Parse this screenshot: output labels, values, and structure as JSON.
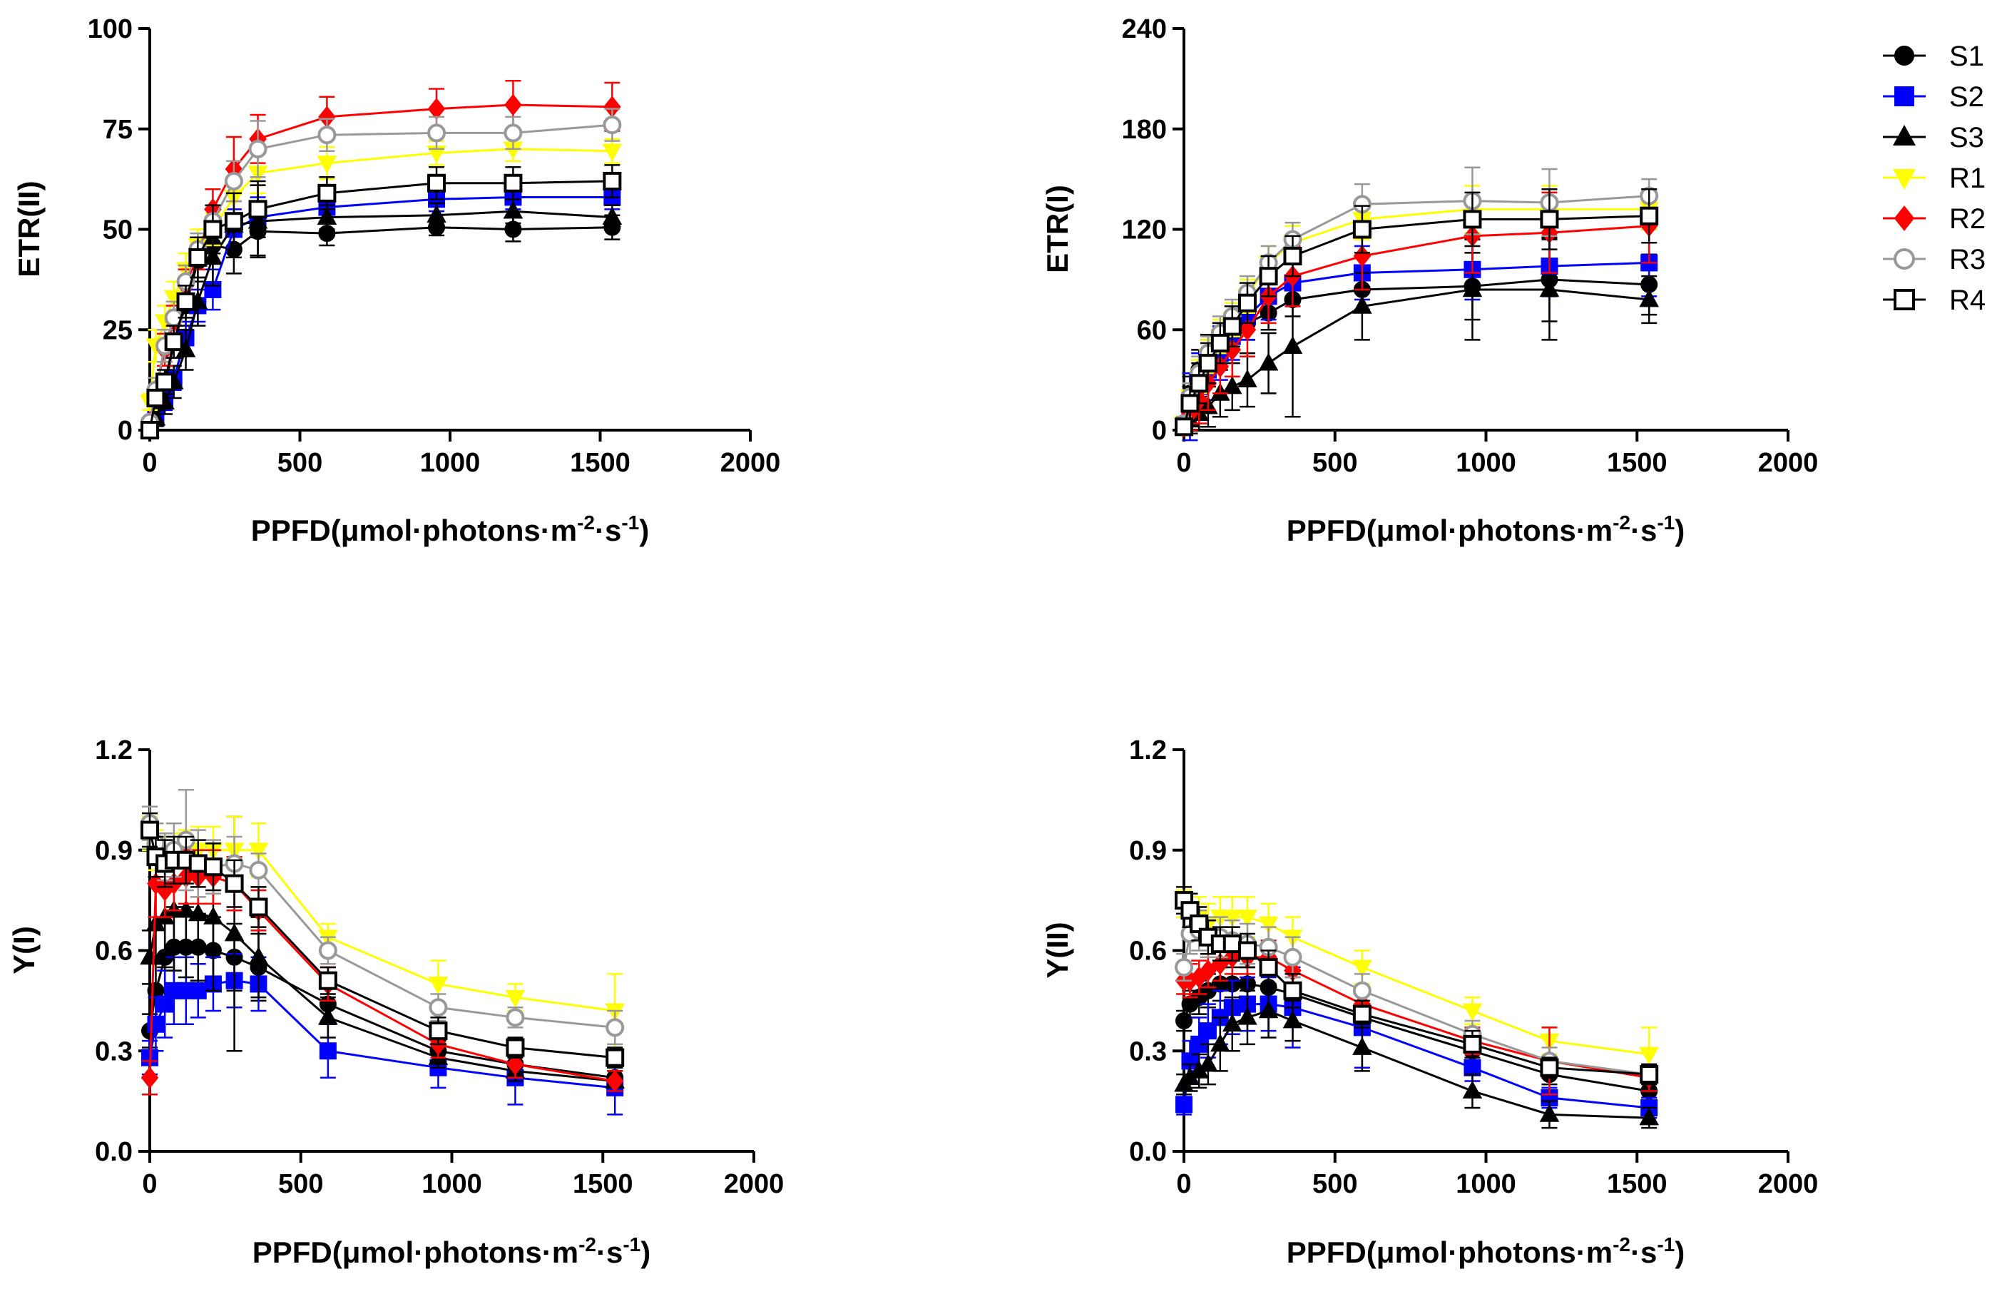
{
  "legend": [
    {
      "name": "S1",
      "color": "#000000",
      "marker": "circle",
      "fill": "filled"
    },
    {
      "name": "S2",
      "color": "#0000FF",
      "marker": "square",
      "fill": "filled"
    },
    {
      "name": "S3",
      "color": "#000000",
      "marker": "triangle-up",
      "fill": "filled"
    },
    {
      "name": "R1",
      "color": "#FFFF00",
      "marker": "triangle-down",
      "fill": "filled"
    },
    {
      "name": "R2",
      "color": "#FF0000",
      "marker": "diamond",
      "fill": "filled"
    },
    {
      "name": "R3",
      "color": "#999999",
      "marker": "circle",
      "fill": "open"
    },
    {
      "name": "R4",
      "color": "#000000",
      "marker": "square",
      "fill": "open"
    }
  ],
  "chart_data": [
    {
      "type": "line",
      "xlabel": "PPFD(μmol·photons·m-2·s-1)",
      "xlabel_parts": {
        "main": "PPFD(μmol·photons·m",
        "sup1": "-2",
        "mid": "·s",
        "sup2": "-1",
        "end": ")"
      },
      "ylabel": "ETR(II)",
      "xlim": [
        0,
        2000
      ],
      "ylim": [
        0,
        100
      ],
      "xticks": [
        "0",
        "500",
        "1000",
        "1500",
        "2000"
      ],
      "yticks": [
        "0",
        "25",
        "50",
        "75",
        "100"
      ],
      "x": [
        0,
        20,
        50,
        80,
        120,
        160,
        210,
        280,
        360,
        590,
        955,
        1210,
        1540
      ],
      "series": [
        {
          "name": "S1",
          "values": [
            0,
            4,
            10,
            22,
            31,
            42,
            46,
            45,
            49.5,
            49,
            50.5,
            50,
            50.5
          ],
          "err": [
            1,
            2,
            3,
            4,
            5,
            5,
            6,
            6,
            6,
            3,
            2,
            3,
            3
          ]
        },
        {
          "name": "S2",
          "values": [
            0,
            3,
            8,
            13,
            23,
            31,
            35,
            50,
            53,
            55.5,
            57.5,
            58,
            58
          ],
          "err": [
            1,
            2,
            3,
            3,
            4,
            4,
            5,
            5,
            5,
            4,
            3,
            3,
            3
          ]
        },
        {
          "name": "S3",
          "values": [
            0,
            3,
            7,
            12,
            20,
            32,
            43,
            51,
            52,
            53,
            53.5,
            54.5,
            53
          ],
          "err": [
            1,
            2,
            3,
            4,
            5,
            6,
            7,
            8,
            9,
            3,
            3,
            3,
            3
          ]
        },
        {
          "name": "R1",
          "values": [
            7,
            21,
            27,
            33,
            40,
            46,
            50,
            58,
            64,
            66.5,
            69,
            70,
            69.5
          ],
          "err": [
            2,
            4,
            4,
            4,
            4,
            4,
            4,
            4,
            5,
            4,
            3,
            3,
            3
          ]
        },
        {
          "name": "R2",
          "values": [
            2,
            10,
            20,
            27,
            36,
            44,
            55,
            65,
            72.5,
            78,
            80,
            81,
            80.5
          ],
          "err": [
            1,
            3,
            4,
            4,
            4,
            4,
            5,
            8,
            6,
            5,
            5,
            6,
            6
          ]
        },
        {
          "name": "R3",
          "values": [
            2,
            10,
            21,
            28,
            37,
            45,
            52,
            62,
            70,
            73.5,
            74,
            74,
            76
          ],
          "err": [
            1,
            3,
            4,
            4,
            4,
            4,
            4,
            5,
            7,
            4,
            4,
            4,
            4
          ]
        },
        {
          "name": "R4",
          "values": [
            0,
            8,
            12,
            22,
            32,
            43,
            50,
            52,
            55,
            59,
            61.5,
            61.5,
            62
          ],
          "err": [
            1,
            2,
            3,
            4,
            4,
            5,
            6,
            7,
            7,
            4,
            4,
            4,
            4
          ]
        }
      ]
    },
    {
      "type": "line",
      "xlabel": "PPFD(μmol·photons·m-2·s-1)",
      "xlabel_parts": {
        "main": "PPFD(μmol·photons·m",
        "sup1": "-2",
        "mid": "·s",
        "sup2": "-1",
        "end": ")"
      },
      "ylabel": "ETR(I)",
      "xlim": [
        0,
        2000
      ],
      "ylim": [
        0,
        240
      ],
      "xticks": [
        "0",
        "500",
        "1000",
        "1500",
        "2000"
      ],
      "yticks": [
        "0",
        "60",
        "120",
        "180",
        "240"
      ],
      "x": [
        0,
        20,
        50,
        80,
        120,
        160,
        210,
        280,
        360,
        590,
        955,
        1210,
        1540
      ],
      "series": [
        {
          "name": "S1",
          "values": [
            2,
            22,
            36,
            45,
            52,
            58,
            64,
            70,
            78,
            84,
            86,
            90,
            87
          ],
          "err": [
            4,
            10,
            12,
            12,
            12,
            10,
            10,
            10,
            10,
            12,
            20,
            25,
            18
          ]
        },
        {
          "name": "S2",
          "values": [
            2,
            14,
            26,
            36,
            46,
            56,
            68,
            80,
            88,
            94,
            96,
            98,
            100
          ],
          "err": [
            4,
            20,
            20,
            18,
            16,
            14,
            14,
            14,
            14,
            16,
            18,
            18,
            20
          ]
        },
        {
          "name": "S3",
          "values": [
            2,
            6,
            10,
            14,
            22,
            26,
            30,
            40,
            50,
            74,
            84,
            84,
            78
          ],
          "err": [
            4,
            8,
            10,
            12,
            14,
            14,
            16,
            18,
            42,
            20,
            30,
            30,
            14
          ]
        },
        {
          "name": "R1",
          "values": [
            4,
            20,
            32,
            44,
            56,
            66,
            80,
            100,
            112,
            126,
            132,
            132,
            132
          ],
          "err": [
            4,
            8,
            10,
            10,
            10,
            10,
            10,
            10,
            10,
            12,
            14,
            14,
            12
          ]
        },
        {
          "name": "R2",
          "values": [
            2,
            10,
            18,
            28,
            38,
            48,
            60,
            80,
            92,
            104,
            116,
            118,
            122
          ],
          "err": [
            4,
            10,
            14,
            16,
            16,
            16,
            16,
            16,
            18,
            20,
            22,
            24,
            22
          ]
        },
        {
          "name": "R3",
          "values": [
            4,
            20,
            34,
            46,
            58,
            68,
            82,
            100,
            114,
            135,
            137,
            136,
            140
          ],
          "err": [
            4,
            8,
            10,
            10,
            10,
            10,
            10,
            10,
            10,
            12,
            20,
            20,
            10
          ]
        },
        {
          "name": "R4",
          "values": [
            2,
            16,
            28,
            40,
            52,
            62,
            76,
            92,
            104,
            120,
            126,
            126,
            128
          ],
          "err": [
            4,
            10,
            12,
            12,
            12,
            12,
            12,
            12,
            12,
            14,
            16,
            18,
            16
          ]
        }
      ]
    },
    {
      "type": "line",
      "xlabel": "PPFD(μmol·photons·m-2·s-1)",
      "xlabel_parts": {
        "main": "PPFD(μmol·photons·m",
        "sup1": "-2",
        "mid": "·s",
        "sup2": "-1",
        "end": ")"
      },
      "ylabel": "Y(I)",
      "xlim": [
        0,
        2000
      ],
      "ylim": [
        0,
        1.2
      ],
      "xticks": [
        "0",
        "500",
        "1000",
        "1500",
        "2000"
      ],
      "yticks": [
        "0.0",
        "0.3",
        "0.6",
        "0.9",
        "1.2"
      ],
      "x": [
        0,
        20,
        50,
        80,
        120,
        160,
        210,
        280,
        360,
        590,
        955,
        1210,
        1540
      ],
      "series": [
        {
          "name": "S1",
          "values": [
            0.36,
            0.48,
            0.58,
            0.61,
            0.61,
            0.61,
            0.6,
            0.58,
            0.55,
            0.44,
            0.3,
            0.26,
            0.22
          ],
          "err": [
            0.05,
            0.1,
            0.12,
            0.12,
            0.12,
            0.1,
            0.1,
            0.1,
            0.1,
            0.05,
            0.03,
            0.03,
            0.03
          ]
        },
        {
          "name": "S2",
          "values": [
            0.28,
            0.38,
            0.44,
            0.48,
            0.48,
            0.48,
            0.5,
            0.51,
            0.5,
            0.3,
            0.25,
            0.22,
            0.19
          ],
          "err": [
            0.05,
            0.08,
            0.1,
            0.1,
            0.1,
            0.08,
            0.08,
            0.08,
            0.08,
            0.08,
            0.06,
            0.08,
            0.08
          ]
        },
        {
          "name": "S3",
          "values": [
            0.58,
            0.68,
            0.7,
            0.72,
            0.72,
            0.71,
            0.7,
            0.65,
            0.58,
            0.4,
            0.28,
            0.24,
            0.21
          ],
          "err": [
            0.08,
            0.12,
            0.15,
            0.18,
            0.2,
            0.2,
            0.22,
            0.35,
            0.12,
            0.06,
            0.03,
            0.03,
            0.03
          ]
        },
        {
          "name": "R1",
          "values": [
            0.95,
            0.9,
            0.87,
            0.88,
            0.89,
            0.9,
            0.9,
            0.9,
            0.9,
            0.64,
            0.5,
            0.46,
            0.42
          ],
          "err": [
            0.05,
            0.06,
            0.07,
            0.07,
            0.07,
            0.07,
            0.07,
            0.1,
            0.08,
            0.04,
            0.07,
            0.04,
            0.11
          ]
        },
        {
          "name": "R2",
          "values": [
            0.22,
            0.8,
            0.78,
            0.8,
            0.82,
            0.82,
            0.82,
            0.8,
            0.72,
            0.5,
            0.32,
            0.26,
            0.21
          ],
          "err": [
            0.05,
            0.1,
            0.08,
            0.08,
            0.08,
            0.08,
            0.08,
            0.08,
            0.06,
            0.05,
            0.04,
            0.04,
            0.03
          ]
        },
        {
          "name": "R3",
          "values": [
            0.98,
            0.92,
            0.88,
            0.9,
            0.93,
            0.86,
            0.85,
            0.86,
            0.84,
            0.6,
            0.43,
            0.4,
            0.37
          ],
          "err": [
            0.05,
            0.06,
            0.07,
            0.08,
            0.15,
            0.1,
            0.08,
            0.08,
            0.05,
            0.04,
            0.04,
            0.03,
            0.05
          ]
        },
        {
          "name": "R4",
          "values": [
            0.96,
            0.88,
            0.86,
            0.87,
            0.87,
            0.86,
            0.85,
            0.8,
            0.73,
            0.51,
            0.36,
            0.31,
            0.28
          ],
          "err": [
            0.05,
            0.06,
            0.07,
            0.07,
            0.07,
            0.07,
            0.07,
            0.07,
            0.06,
            0.04,
            0.04,
            0.03,
            0.03
          ]
        }
      ]
    },
    {
      "type": "line",
      "xlabel": "PPFD(μmol·photons·m-2·s-1)",
      "xlabel_parts": {
        "main": "PPFD(μmol·photons·m",
        "sup1": "-2",
        "mid": "·s",
        "sup2": "-1",
        "end": ")"
      },
      "ylabel": "Y(II)",
      "xlim": [
        0,
        2000
      ],
      "ylim": [
        0,
        1.2
      ],
      "xticks": [
        "0",
        "500",
        "1000",
        "1500",
        "2000"
      ],
      "yticks": [
        "0.0",
        "0.3",
        "0.6",
        "0.9",
        "1.2"
      ],
      "x": [
        0,
        20,
        50,
        80,
        120,
        160,
        210,
        280,
        360,
        590,
        955,
        1210,
        1540
      ],
      "series": [
        {
          "name": "S1",
          "values": [
            0.39,
            0.44,
            0.46,
            0.48,
            0.5,
            0.5,
            0.5,
            0.49,
            0.47,
            0.4,
            0.3,
            0.23,
            0.18
          ],
          "err": [
            0.03,
            0.04,
            0.05,
            0.05,
            0.05,
            0.05,
            0.05,
            0.05,
            0.05,
            0.04,
            0.03,
            0.03,
            0.02
          ]
        },
        {
          "name": "S2",
          "values": [
            0.14,
            0.27,
            0.32,
            0.36,
            0.4,
            0.43,
            0.44,
            0.44,
            0.43,
            0.37,
            0.25,
            0.16,
            0.13
          ],
          "err": [
            0.03,
            0.06,
            0.08,
            0.08,
            0.08,
            0.08,
            0.08,
            0.08,
            0.12,
            0.12,
            0.04,
            0.03,
            0.03
          ]
        },
        {
          "name": "S3",
          "values": [
            0.2,
            0.22,
            0.24,
            0.26,
            0.32,
            0.38,
            0.4,
            0.42,
            0.39,
            0.31,
            0.18,
            0.11,
            0.1
          ],
          "err": [
            0.03,
            0.04,
            0.05,
            0.06,
            0.08,
            0.08,
            0.08,
            0.08,
            0.06,
            0.07,
            0.05,
            0.04,
            0.03
          ]
        },
        {
          "name": "R1",
          "values": [
            0.74,
            0.72,
            0.7,
            0.68,
            0.7,
            0.7,
            0.7,
            0.68,
            0.64,
            0.55,
            0.42,
            0.33,
            0.29
          ],
          "err": [
            0.04,
            0.05,
            0.06,
            0.06,
            0.06,
            0.06,
            0.06,
            0.06,
            0.06,
            0.05,
            0.04,
            0.04,
            0.08
          ]
        },
        {
          "name": "R2",
          "values": [
            0.51,
            0.51,
            0.52,
            0.54,
            0.56,
            0.58,
            0.58,
            0.58,
            0.54,
            0.44,
            0.33,
            0.27,
            0.22
          ],
          "err": [
            0.04,
            0.05,
            0.05,
            0.05,
            0.05,
            0.05,
            0.05,
            0.05,
            0.05,
            0.05,
            0.04,
            0.1,
            0.04
          ]
        },
        {
          "name": "R3",
          "values": [
            0.55,
            0.65,
            0.66,
            0.64,
            0.64,
            0.63,
            0.62,
            0.61,
            0.58,
            0.48,
            0.35,
            0.27,
            0.23
          ],
          "err": [
            0.04,
            0.06,
            0.06,
            0.06,
            0.06,
            0.06,
            0.06,
            0.06,
            0.06,
            0.05,
            0.04,
            0.04,
            0.03
          ]
        },
        {
          "name": "R4",
          "values": [
            0.75,
            0.72,
            0.68,
            0.64,
            0.62,
            0.62,
            0.6,
            0.55,
            0.48,
            0.41,
            0.32,
            0.25,
            0.23
          ],
          "err": [
            0.04,
            0.05,
            0.05,
            0.05,
            0.05,
            0.05,
            0.05,
            0.05,
            0.05,
            0.04,
            0.04,
            0.03,
            0.03
          ]
        }
      ]
    }
  ]
}
